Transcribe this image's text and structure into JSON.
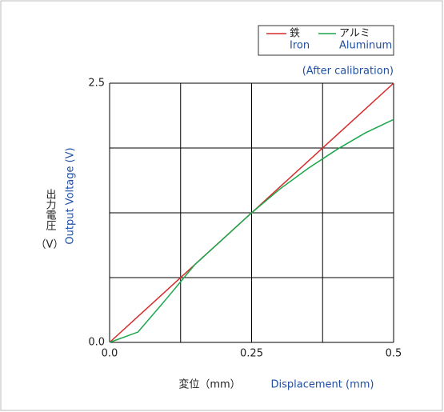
{
  "chart_data": {
    "type": "line",
    "annotation": "(After calibration)",
    "x_label_ja": "変位（mm）",
    "x_label": "Displacement (mm)",
    "y_label_ja": "出力電圧",
    "y_label_ja_unit": "（V）",
    "y_label": "Output Voltage (V)",
    "x": [
      0,
      0.05,
      0.1,
      0.15,
      0.2,
      0.25,
      0.3,
      0.35,
      0.4,
      0.45,
      0.5
    ],
    "series": [
      {
        "name": "鉄",
        "name_en": "Iron",
        "color": "#d62b2b",
        "values": [
          0,
          0.25,
          0.5,
          0.75,
          1.0,
          1.25,
          1.5,
          1.75,
          2.0,
          2.25,
          2.5
        ]
      },
      {
        "name": "アルミ",
        "name_en": "Aluminum",
        "color": "#1aa64a",
        "values": [
          0,
          0.1,
          0.42,
          0.75,
          1.0,
          1.25,
          1.48,
          1.68,
          1.86,
          2.02,
          2.15
        ]
      }
    ],
    "xlim": [
      0,
      0.5
    ],
    "ylim": [
      0,
      2.5
    ],
    "xticks": [
      {
        "value": 0,
        "label": "0.0"
      },
      0.25,
      0.5
    ],
    "yticks": [
      {
        "value": 0,
        "label": "0.0"
      },
      2.5
    ],
    "xgrid": [
      0,
      0.125,
      0.25,
      0.375,
      0.5
    ],
    "ygrid": [
      0,
      0.625,
      1.25,
      1.875,
      2.5
    ],
    "grid": true
  }
}
